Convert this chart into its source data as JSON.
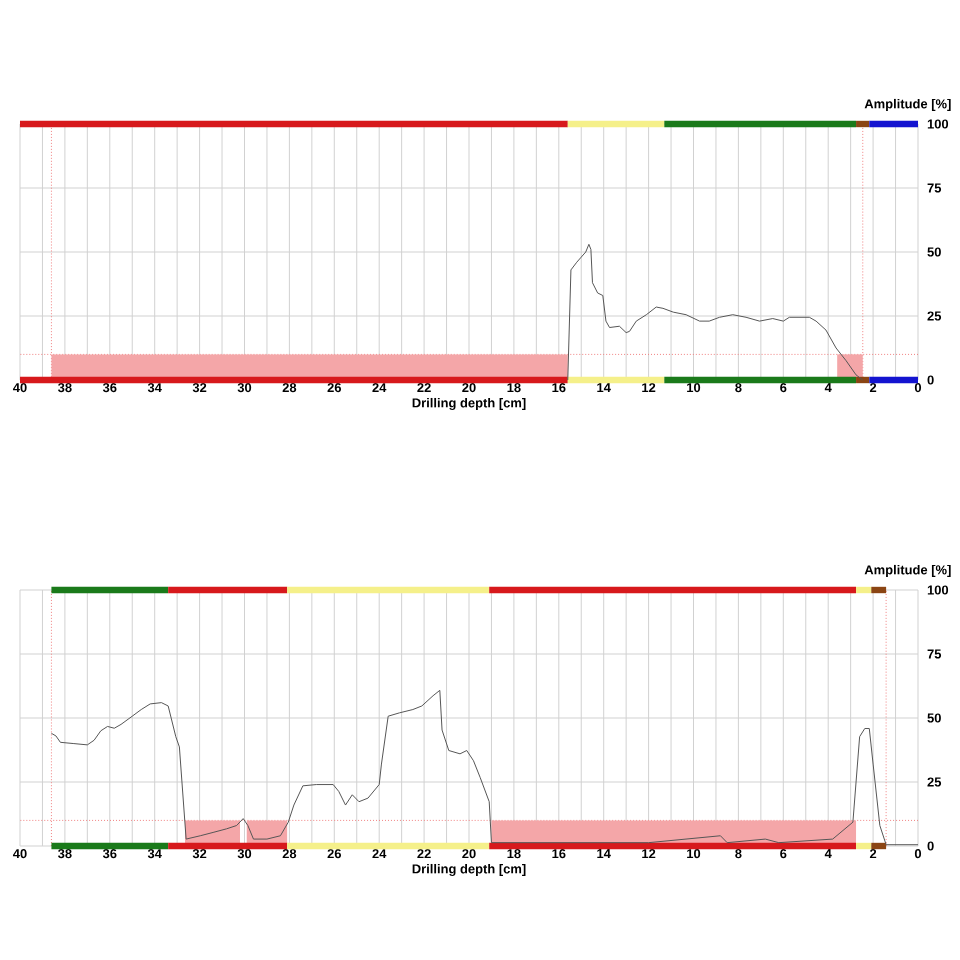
{
  "chart_data": [
    {
      "type": "line",
      "xlabel": "Drilling depth [cm]",
      "ylabel": "Amplitude [%]",
      "xlim": [
        40,
        0
      ],
      "ylim": [
        0,
        100
      ],
      "xticks": [
        40,
        {
          "value": 39,
          "label": null
        },
        38,
        {
          "value": 37,
          "label": null
        },
        36,
        {
          "value": 35,
          "label": null
        },
        34,
        {
          "value": 33,
          "label": null
        },
        32,
        {
          "value": 31,
          "label": null
        },
        30,
        {
          "value": 29,
          "label": null
        },
        28,
        {
          "value": 27,
          "label": null
        },
        26,
        {
          "value": 25,
          "label": null
        },
        24,
        {
          "value": 23,
          "label": null
        },
        22,
        {
          "value": 21,
          "label": null
        },
        20,
        {
          "value": 19,
          "label": null
        },
        18,
        {
          "value": 17,
          "label": null
        },
        16,
        {
          "value": 15,
          "label": null
        },
        14,
        {
          "value": 13,
          "label": null
        },
        12,
        {
          "value": 11,
          "label": null
        },
        10,
        {
          "value": 9,
          "label": null
        },
        8,
        {
          "value": 7,
          "label": null
        },
        6,
        {
          "value": 5,
          "label": null
        },
        4,
        {
          "value": 3,
          "label": null
        },
        2,
        {
          "value": 1,
          "label": null
        },
        0
      ],
      "yticks": [
        0,
        25,
        50,
        75,
        100
      ],
      "grid": true,
      "series": [
        {
          "type": "area",
          "color": "#f4a6a8",
          "x": [
            38.6,
            15.6
          ],
          "values": [
            10,
            10
          ]
        },
        {
          "type": "area",
          "color": "#f4a6a8",
          "x": [
            3.6,
            2.46
          ],
          "values": [
            10,
            10
          ]
        },
        {
          "type": "line",
          "color": "#d7191c",
          "x": [
            40,
            15.6
          ],
          "values": [
            100,
            100
          ]
        },
        {
          "type": "line",
          "color": "#f5f08a",
          "x": [
            15.6,
            11.3
          ],
          "values": [
            100,
            100
          ]
        },
        {
          "type": "line",
          "color": "#1a7a1a",
          "x": [
            11.3,
            2.76
          ],
          "values": [
            100,
            100
          ]
        },
        {
          "type": "line",
          "color": "#8b4513",
          "x": [
            2.76,
            2.17
          ],
          "values": [
            100,
            100
          ]
        },
        {
          "type": "line",
          "color": "#1414d0",
          "x": [
            2.17,
            0
          ],
          "values": [
            100,
            100
          ]
        },
        {
          "type": "line",
          "color": "#d7191c",
          "x": [
            40,
            15.6
          ],
          "values": [
            0,
            0
          ]
        },
        {
          "type": "line",
          "color": "#f5f08a",
          "x": [
            15.6,
            11.3
          ],
          "values": [
            0,
            0
          ]
        },
        {
          "type": "line",
          "color": "#1a7a1a",
          "x": [
            11.3,
            2.76
          ],
          "values": [
            0,
            0
          ]
        },
        {
          "type": "line",
          "color": "#8b4513",
          "x": [
            2.76,
            2.17
          ],
          "values": [
            0,
            0
          ]
        },
        {
          "type": "line",
          "color": "#1414d0",
          "x": [
            2.17,
            0
          ],
          "values": [
            0,
            0
          ]
        },
        {
          "type": "line",
          "color": "#555555",
          "x": [
            15.6,
            15.46,
            15.2,
            15.0,
            14.8,
            14.66,
            14.57,
            14.5,
            14.27,
            14.04,
            13.9,
            13.74,
            13.3,
            13.0,
            12.85,
            12.55,
            12.1,
            11.66,
            11.36,
            10.9,
            10.33,
            9.73,
            9.3,
            8.84,
            8.25,
            7.66,
            7.06,
            6.47,
            6.0,
            5.73,
            5.28,
            4.84,
            4.54,
            4.1,
            3.65,
            3.2,
            2.76,
            2.46
          ],
          "values": [
            0,
            43,
            46,
            48,
            50,
            53,
            51,
            38,
            34,
            33,
            23,
            20.5,
            21,
            18.5,
            19,
            23,
            25.5,
            28.5,
            28,
            26.5,
            25.5,
            23,
            23,
            24.5,
            25.5,
            24.5,
            23,
            24,
            23,
            24.5,
            24.5,
            24.5,
            23,
            19.5,
            12.5,
            7.5,
            2,
            0
          ]
        }
      ],
      "ref_lines": [
        {
          "axis": "y",
          "value": 10,
          "color": "#f08080",
          "line_style": "dotted"
        },
        {
          "axis": "x",
          "value": 38.6,
          "color": "#f08080",
          "line_style": "dotted"
        },
        {
          "axis": "x",
          "value": 2.46,
          "color": "#f08080",
          "line_style": "dotted"
        }
      ]
    },
    {
      "type": "line",
      "xlabel": "Drilling depth [cm]",
      "ylabel": "Amplitude [%]",
      "xlim": [
        40,
        0
      ],
      "ylim": [
        0,
        100
      ],
      "xticks": [
        40,
        {
          "value": 39,
          "label": null
        },
        38,
        {
          "value": 37,
          "label": null
        },
        36,
        {
          "value": 35,
          "label": null
        },
        34,
        {
          "value": 33,
          "label": null
        },
        32,
        {
          "value": 31,
          "label": null
        },
        30,
        {
          "value": 29,
          "label": null
        },
        28,
        {
          "value": 27,
          "label": null
        },
        26,
        {
          "value": 25,
          "label": null
        },
        24,
        {
          "value": 23,
          "label": null
        },
        22,
        {
          "value": 21,
          "label": null
        },
        20,
        {
          "value": 19,
          "label": null
        },
        18,
        {
          "value": 17,
          "label": null
        },
        16,
        {
          "value": 15,
          "label": null
        },
        14,
        {
          "value": 13,
          "label": null
        },
        12,
        {
          "value": 11,
          "label": null
        },
        10,
        {
          "value": 9,
          "label": null
        },
        8,
        {
          "value": 7,
          "label": null
        },
        6,
        {
          "value": 5,
          "label": null
        },
        4,
        {
          "value": 3,
          "label": null
        },
        2,
        {
          "value": 1,
          "label": null
        },
        0
      ],
      "yticks": [
        0,
        25,
        50,
        75,
        100
      ],
      "grid": true,
      "series": [
        {
          "type": "area",
          "color": "#f4a6a8",
          "x": [
            32.65,
            30.2
          ],
          "values": [
            10,
            10
          ]
        },
        {
          "type": "area",
          "color": "#f4a6a8",
          "x": [
            29.9,
            28.1
          ],
          "values": [
            10,
            10
          ]
        },
        {
          "type": "area",
          "color": "#f4a6a8",
          "x": [
            19.0,
            2.76
          ],
          "values": [
            10,
            10
          ]
        },
        {
          "type": "line",
          "color": "#1a7a1a",
          "x": [
            38.6,
            33.4
          ],
          "values": [
            100,
            100
          ]
        },
        {
          "type": "line",
          "color": "#d7191c",
          "x": [
            33.4,
            28.1
          ],
          "values": [
            100,
            100
          ]
        },
        {
          "type": "line",
          "color": "#f5f08a",
          "x": [
            28.1,
            19.1
          ],
          "values": [
            100,
            100
          ]
        },
        {
          "type": "line",
          "color": "#d7191c",
          "x": [
            19.1,
            2.76
          ],
          "values": [
            100,
            100
          ]
        },
        {
          "type": "line",
          "color": "#f5f08a",
          "x": [
            2.76,
            2.08
          ],
          "values": [
            100,
            100
          ]
        },
        {
          "type": "line",
          "color": "#8b4513",
          "x": [
            2.08,
            1.42
          ],
          "values": [
            100,
            100
          ]
        },
        {
          "type": "line",
          "color": "#1a7a1a",
          "x": [
            38.6,
            33.4
          ],
          "values": [
            0,
            0
          ]
        },
        {
          "type": "line",
          "color": "#d7191c",
          "x": [
            33.4,
            28.1
          ],
          "values": [
            0,
            0
          ]
        },
        {
          "type": "line",
          "color": "#f5f08a",
          "x": [
            28.1,
            19.1
          ],
          "values": [
            0,
            0
          ]
        },
        {
          "type": "line",
          "color": "#d7191c",
          "x": [
            19.1,
            2.76
          ],
          "values": [
            0,
            0
          ]
        },
        {
          "type": "line",
          "color": "#f5f08a",
          "x": [
            2.76,
            2.08
          ],
          "values": [
            0,
            0
          ]
        },
        {
          "type": "line",
          "color": "#8b4513",
          "x": [
            2.08,
            1.42
          ],
          "values": [
            0,
            0
          ]
        },
        {
          "type": "line",
          "color": "#555555",
          "x": [
            38.6,
            38.4,
            38.2,
            37.6,
            37.0,
            36.7,
            36.4,
            36.1,
            35.8,
            35.5,
            35.0,
            34.6,
            34.2,
            33.7,
            33.4,
            33.06,
            32.9,
            32.6,
            31.97,
            31.4,
            30.8,
            30.35,
            30.06,
            29.85,
            29.6,
            29.0,
            28.4,
            28.05,
            27.8,
            27.4,
            26.8,
            26.05,
            25.8,
            25.5,
            25.2,
            24.9,
            24.5,
            24.0,
            23.9,
            23.6,
            23.1,
            22.5,
            22.1,
            21.6,
            21.3,
            21.2,
            20.9,
            20.4,
            20.1,
            19.8,
            19.5,
            19.1,
            19.0,
            12.0,
            8.8,
            8.5,
            6.8,
            6.2,
            3.8,
            2.9,
            2.6,
            2.37,
            2.17,
            2.0,
            1.7,
            1.42,
            0
          ],
          "values": [
            44,
            43,
            40.5,
            40,
            39.5,
            41.3,
            45,
            46.7,
            46,
            47.5,
            50.7,
            53.3,
            55.5,
            56,
            54.7,
            42.7,
            38.7,
            2.7,
            4,
            5.3,
            6.7,
            8,
            10.7,
            8,
            2.7,
            2.7,
            4,
            9.3,
            16,
            23.5,
            24,
            24,
            21.3,
            16,
            20,
            17.3,
            18.7,
            24,
            32,
            50.7,
            52,
            53.3,
            54.7,
            58.7,
            60.8,
            45.3,
            37.3,
            36,
            37.3,
            33.3,
            26.7,
            17.3,
            1.3,
            1.3,
            4,
            1.3,
            2.7,
            1.3,
            2.7,
            9.3,
            42.7,
            45.9,
            45.9,
            32,
            8,
            0.5,
            0.5
          ]
        }
      ],
      "ref_lines": [
        {
          "axis": "y",
          "value": 10,
          "color": "#f08080",
          "line_style": "dotted"
        },
        {
          "axis": "x",
          "value": 38.6,
          "color": "#f08080",
          "line_style": "dotted"
        },
        {
          "axis": "x",
          "value": 1.42,
          "color": "#f08080",
          "line_style": "dotted"
        }
      ]
    }
  ]
}
